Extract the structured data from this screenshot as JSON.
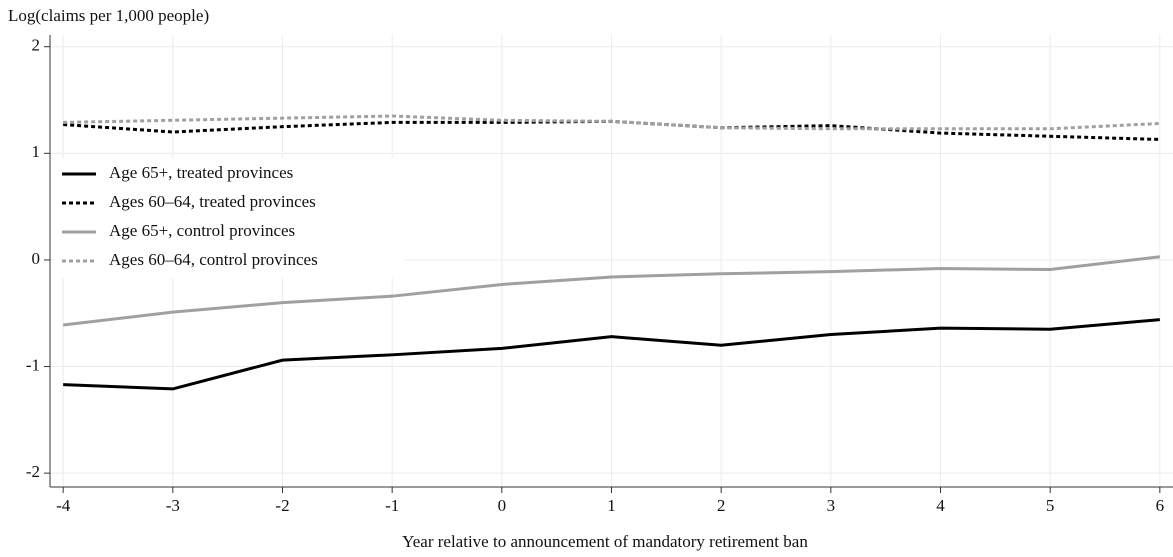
{
  "chart_data": {
    "type": "line",
    "y_label": "Log(claims per 1,000 people)",
    "x_label": "Year relative to announcement of mandatory retirement ban",
    "x": [
      -4,
      -3,
      -2,
      -1,
      0,
      1,
      2,
      3,
      4,
      5,
      6
    ],
    "xlim": [
      -4.12,
      6.12
    ],
    "xticks": [
      -4,
      -3,
      -2,
      -1,
      0,
      1,
      2,
      3,
      4,
      5,
      6
    ],
    "ylim": [
      -2.13,
      2.11
    ],
    "yticks": [
      -2,
      -1,
      0,
      1,
      2
    ],
    "grid": true,
    "legend": "left",
    "series": [
      {
        "name": "Age 65+, treated provinces",
        "color": "#000000",
        "line_style": "solid",
        "values": [
          -1.17,
          -1.21,
          -0.94,
          -0.89,
          -0.83,
          -0.72,
          -0.8,
          -0.7,
          -0.64,
          -0.65,
          -0.56
        ]
      },
      {
        "name": "Ages 60–64, treated provinces",
        "color": "#000000",
        "line_style": "dashed",
        "values": [
          1.27,
          1.2,
          1.25,
          1.29,
          1.29,
          1.3,
          1.24,
          1.26,
          1.19,
          1.16,
          1.13
        ]
      },
      {
        "name": "Age 65+, control provinces",
        "color": "#a0a0a0",
        "line_style": "solid",
        "values": [
          -0.61,
          -0.49,
          -0.4,
          -0.34,
          -0.23,
          -0.16,
          -0.13,
          -0.11,
          -0.08,
          -0.09,
          0.03
        ]
      },
      {
        "name": "Ages 60–64, control provinces",
        "color": "#a0a0a0",
        "line_style": "dashed",
        "values": [
          1.29,
          1.31,
          1.33,
          1.35,
          1.31,
          1.3,
          1.24,
          1.23,
          1.23,
          1.23,
          1.28
        ]
      }
    ]
  }
}
